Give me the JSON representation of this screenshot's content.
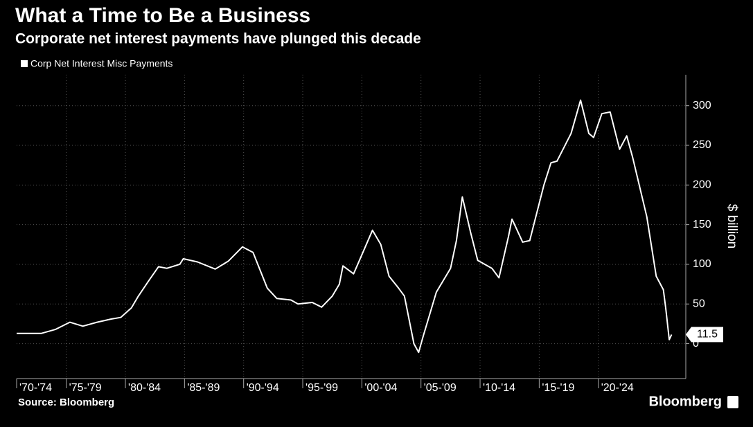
{
  "chart_data": {
    "type": "line",
    "title": "What a Time to Be a Business",
    "subtitle": "Corporate net interest payments have plunged this decade",
    "y_axis_label": "$ billion",
    "source": "Source: Bloomberg",
    "brand": "Bloomberg",
    "x": [
      1970.8,
      1972.9,
      1974.1,
      1975.3,
      1976.4,
      1977.6,
      1978.8,
      1979.6,
      1980.5,
      1981.1,
      1982,
      1982.8,
      1983.5,
      1984.6,
      1984.9,
      1986.1,
      1987.6,
      1988.7,
      1989.9,
      1990.8,
      1992,
      1992.8,
      1994,
      1994.6,
      1995.8,
      1996.6,
      1997.5,
      1998.1,
      1998.4,
      1999.3,
      1999.8,
      2000.9,
      2001.6,
      2002.3,
      2003.1,
      2003.6,
      2004.4,
      2004.8,
      2005.2,
      2006.3,
      2007.5,
      2008,
      2008.5,
      2009.2,
      2009.8,
      2011,
      2011.6,
      2012.4,
      2012.7,
      2013.6,
      2014.2,
      2015.4,
      2016,
      2016.5,
      2017.7,
      2018.5,
      2019.2,
      2019.6,
      2020.3,
      2021,
      2021.8,
      2022.4,
      2022.9,
      2024.1,
      2024.9,
      2025.5,
      2025.7,
      2026,
      2026.2
    ],
    "series": [
      {
        "name": "Corp Net Interest Misc Payments",
        "color": "#ffffff",
        "values": [
          13,
          13,
          18,
          27,
          22,
          27,
          31,
          33,
          45,
          60,
          80,
          97,
          95,
          100,
          107,
          103,
          94,
          104,
          122,
          115,
          70,
          57,
          55,
          50,
          52,
          46,
          60,
          75,
          98,
          88,
          105,
          143,
          125,
          85,
          70,
          60,
          0,
          -11,
          10,
          65,
          95,
          130,
          185,
          140,
          105,
          95,
          83,
          135,
          157,
          128,
          130,
          200,
          228,
          230,
          265,
          307,
          265,
          260,
          290,
          292,
          245,
          262,
          235,
          160,
          85,
          68,
          45,
          5,
          11.5
        ]
      }
    ],
    "xlim": [
      1970.8,
      2027.4
    ],
    "xticks": [
      {
        "value": 1970,
        "label": "'70-'74"
      },
      {
        "value": 1975,
        "label": "'75-'79"
      },
      {
        "value": 1980,
        "label": "'80-'84"
      },
      {
        "value": 1985,
        "label": "'85-'89"
      },
      {
        "value": 1990,
        "label": "'90-'94"
      },
      {
        "value": 1995,
        "label": "'95-'99"
      },
      {
        "value": 2000,
        "label": "'00-'04"
      },
      {
        "value": 2005,
        "label": "'05-'09"
      },
      {
        "value": 2010,
        "label": "'10-'14"
      },
      {
        "value": 2015,
        "label": "'15-'19"
      },
      {
        "value": 2020,
        "label": "'20-'24"
      }
    ],
    "ylim": [
      -44,
      339
    ],
    "yticks": [
      0,
      50,
      100,
      150,
      200,
      250,
      300
    ],
    "grid": true
  }
}
